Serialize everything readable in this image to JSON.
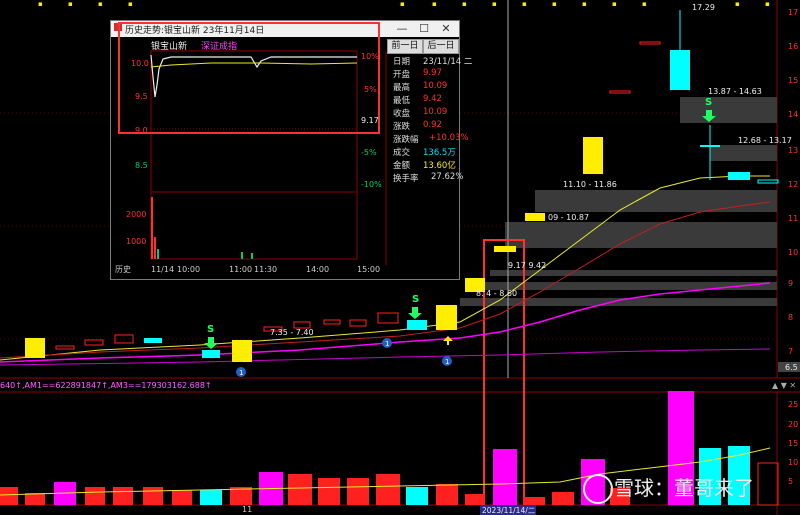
{
  "colors": {
    "up": "#ff2020",
    "down": "#00ffff",
    "yellow_box": "#ffee00",
    "magenta": "#ff00ff",
    "ma_yellow": "#e8e830",
    "ma_red": "#c02020",
    "signal_green": "#20ff60",
    "highlight": "#ff3030"
  },
  "price_axis": [
    "17",
    "16",
    "15",
    "14",
    "13",
    "12",
    "11",
    "10",
    "9",
    "8",
    "7",
    "6.5"
  ],
  "volume_axis": [
    "25",
    "20",
    "15",
    "10",
    "5"
  ],
  "high_label": "17.29",
  "zones": [
    {
      "label": "13.87 - 14.63"
    },
    {
      "label": "12.68 - 13.17"
    },
    {
      "label": "11.10 - 11.86"
    },
    {
      "label": "09 - 10.87"
    },
    {
      "label": "9.17  9.42"
    },
    {
      "label": "8.  4 - 8.60"
    },
    {
      "label": "7.35 - 7.40"
    }
  ],
  "signals": {
    "s": "S",
    "badge": "1"
  },
  "indicator_label": "640↑,AM1==622891847↑,AM3==179303162.688↑",
  "date_axis": {
    "tick": "11",
    "selected_date": "2023/11/14/二"
  },
  "popup": {
    "title": "历史走势:银宝山新 23年11月14日",
    "stock_name": "银宝山新",
    "index_name": "深证成指",
    "prev_button": "前一日",
    "next_button": "后一日",
    "price_axis": [
      "10.0",
      "9.5",
      "9.0",
      "8.5"
    ],
    "pct_axis": [
      "10%",
      "5%",
      "-5%",
      "-10%"
    ],
    "price_marker": "9.17",
    "volume_axis": [
      "2000",
      "1000"
    ],
    "time_axis": {
      "history": "历史",
      "t1": "11/14",
      "t2": "10:00",
      "t3": "11:00",
      "t4": "11:30",
      "t5": "14:00",
      "t6": "15:00"
    },
    "info": [
      {
        "label": "日期",
        "value": "23/11/14 二",
        "color": "#dddddd"
      },
      {
        "label": "开盘",
        "value": "9.97",
        "color": "#ff3030"
      },
      {
        "label": "最高",
        "value": "10.09",
        "color": "#ff3030"
      },
      {
        "label": "最低",
        "value": "9.42",
        "color": "#ff3030"
      },
      {
        "label": "收盘",
        "value": "10.09",
        "color": "#ff3030"
      },
      {
        "label": "涨跌",
        "value": "0.92",
        "color": "#ff3030"
      },
      {
        "label": "涨跌幅",
        "value": "+10.03%",
        "color": "#ff3030"
      },
      {
        "label": "成交",
        "value": "136.5万",
        "color": "#00e0ff"
      },
      {
        "label": "金额",
        "value": "13.60亿",
        "color": "#ffee00"
      },
      {
        "label": "换手率",
        "value": "27.62%",
        "color": "#dddddd"
      }
    ]
  },
  "watermark": "雪球：董哥来了"
}
